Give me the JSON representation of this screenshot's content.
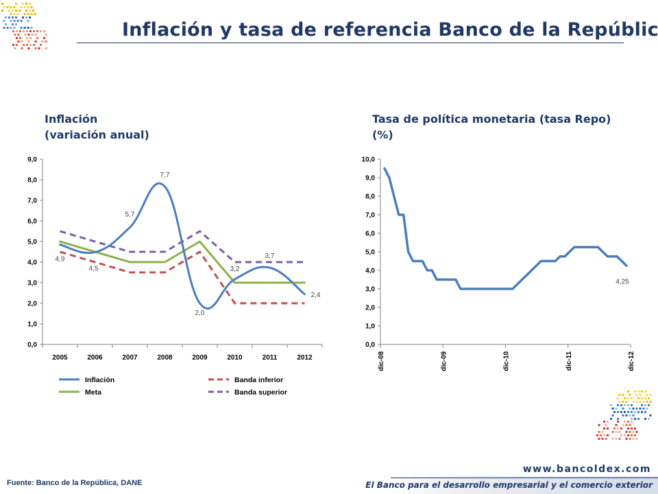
{
  "page": {
    "title": "Inflación y tasa de referencia Banco de la República",
    "source": "Fuente: Banco de la República, DANE",
    "footer_url": "www.bancoldex.com",
    "footer_tagline": "El Banco para el desarrollo empresarial y el comercio exterior",
    "colors": {
      "title": "#1f3864",
      "inflacion": "#4a7ebb",
      "meta": "#8db04a",
      "banda_inferior": "#c0504d",
      "banda_superior": "#7b5ea7",
      "repo": "#4a7ebb"
    },
    "logos": [
      "bancoldex-dots-logo-top-left",
      "bancoldex-dots-logo-bottom-right"
    ]
  },
  "chart_data": [
    {
      "type": "line",
      "title": "Inflación",
      "subtitle": "(variación anual)",
      "x": [
        "2005",
        "2006",
        "2007",
        "2008",
        "2009",
        "2010",
        "2011",
        "2012"
      ],
      "ylim": [
        0,
        9
      ],
      "yticks": [
        "0,0",
        "1,0",
        "2,0",
        "3,0",
        "4,0",
        "5,0",
        "6,0",
        "7,0",
        "8,0",
        "9,0"
      ],
      "grid": false,
      "legend_position": "bottom",
      "series": [
        {
          "name": "Inflación",
          "values": [
            4.85,
            4.48,
            5.69,
            7.67,
            2.0,
            3.17,
            3.73,
            2.44
          ],
          "smooth": true,
          "dash": false,
          "color": "#4a7ebb"
        },
        {
          "name": "Meta",
          "values": [
            5.0,
            4.5,
            4.0,
            4.0,
            5.0,
            3.0,
            3.0,
            3.0
          ],
          "dash": false,
          "color": "#8db04a"
        },
        {
          "name": "Banda inferior",
          "values": [
            4.5,
            4.0,
            3.5,
            3.5,
            4.5,
            2.0,
            2.0,
            2.0
          ],
          "dash": true,
          "color": "#c0504d"
        },
        {
          "name": "Banda superior",
          "values": [
            5.5,
            5.0,
            4.5,
            4.5,
            5.5,
            4.0,
            4.0,
            4.0
          ],
          "dash": true,
          "color": "#7b5ea7"
        }
      ],
      "data_labels": [
        {
          "index": 0,
          "text": "4,9"
        },
        {
          "index": 1,
          "text": "4,5"
        },
        {
          "index": 2,
          "text": "5,7"
        },
        {
          "index": 3,
          "text": "7,7"
        },
        {
          "index": 4,
          "text": "2,0"
        },
        {
          "index": 5,
          "text": "3,2"
        },
        {
          "index": 6,
          "text": "3,7"
        },
        {
          "index": 7,
          "text": "2,4"
        }
      ]
    },
    {
      "type": "line",
      "title": "Tasa de política monetaria (tasa Repo)",
      "subtitle": "(%)",
      "x_ticks": [
        "dic-08",
        "dic-09",
        "dic-10",
        "dic-11",
        "dic-12"
      ],
      "ylim": [
        0,
        10
      ],
      "yticks": [
        "0,0",
        "1,0",
        "2,0",
        "3,0",
        "4,0",
        "5,0",
        "6,0",
        "7,0",
        "8,0",
        "9,0",
        "10,0"
      ],
      "grid": false,
      "series": [
        {
          "name": "Tasa Repo",
          "color": "#4a7ebb",
          "values": [
            9.5,
            9.0,
            8.0,
            7.0,
            7.0,
            5.0,
            4.5,
            4.5,
            4.5,
            4.0,
            4.0,
            3.5,
            3.5,
            3.5,
            3.5,
            3.5,
            3.0,
            3.0,
            3.0,
            3.0,
            3.0,
            3.0,
            3.0,
            3.0,
            3.0,
            3.0,
            3.0,
            3.0,
            3.25,
            3.5,
            3.75,
            4.0,
            4.25,
            4.5,
            4.5,
            4.5,
            4.5,
            4.75,
            4.75,
            5.0,
            5.25,
            5.25,
            5.25,
            5.25,
            5.25,
            5.25,
            5.0,
            4.75,
            4.75,
            4.75,
            4.5,
            4.25
          ]
        }
      ],
      "data_labels": [
        {
          "index": 51,
          "text": "4,25"
        }
      ]
    }
  ]
}
